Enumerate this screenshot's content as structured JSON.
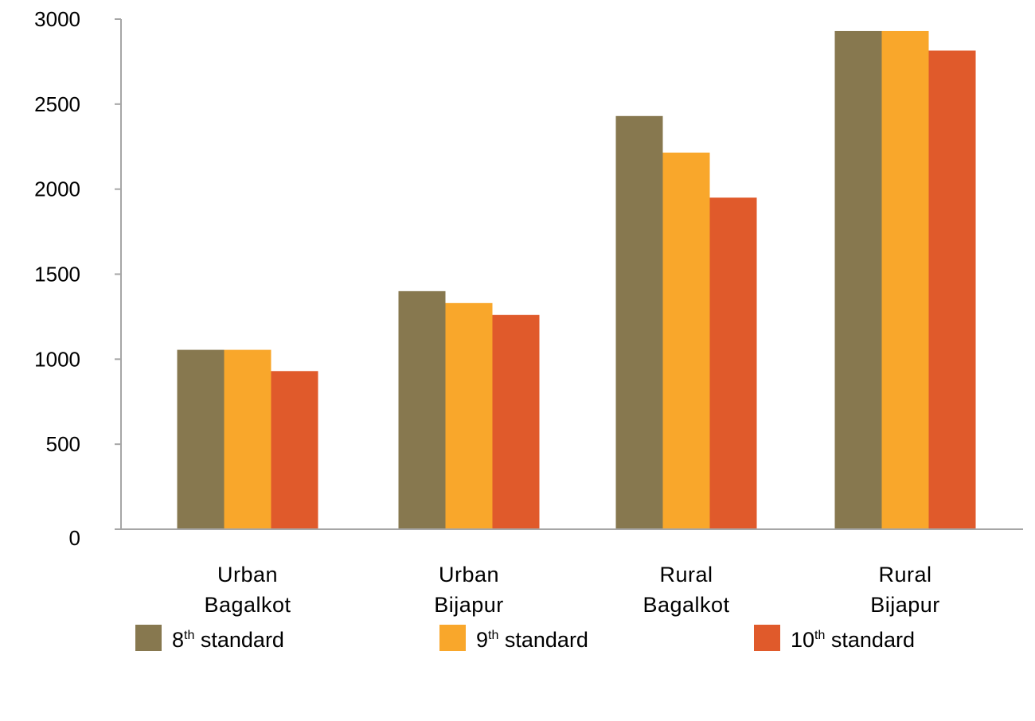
{
  "chart_data": {
    "type": "bar",
    "categories": [
      [
        "Urban",
        "Bagalkot"
      ],
      [
        "Urban",
        "Bijapur"
      ],
      [
        "Rural",
        "Bagalkot"
      ],
      [
        "Rural",
        "Bijapur"
      ]
    ],
    "series": [
      {
        "name_base": "8",
        "name_sup": "th",
        "name_rest": " standard",
        "color": "#87784f",
        "values": [
          1055,
          1400,
          2430,
          2930
        ]
      },
      {
        "name_base": "9",
        "name_sup": "th",
        "name_rest": " standard",
        "color": "#f9a72b",
        "values": [
          1055,
          1330,
          2215,
          2930
        ]
      },
      {
        "name_base": "10",
        "name_sup": "th",
        "name_rest": " standard",
        "color": "#e05a2b",
        "values": [
          930,
          1260,
          1950,
          2815
        ]
      }
    ],
    "yticks": [
      0,
      500,
      1000,
      1500,
      2000,
      2500,
      3000
    ],
    "ylim": [
      0,
      3000
    ],
    "title": "",
    "xlabel": "",
    "ylabel": "",
    "grid": false,
    "legend_position": "bottom",
    "axis_color": "#a6a6a6"
  }
}
